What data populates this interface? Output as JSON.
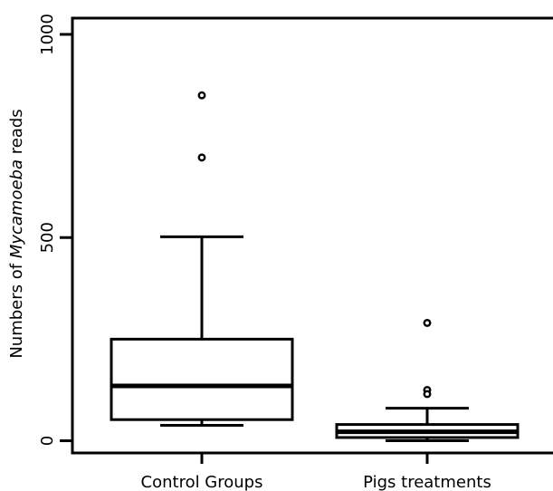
{
  "chart_data": {
    "type": "boxplot",
    "title": "",
    "xlabel": "",
    "ylabel": {
      "prefix": "Numbers of ",
      "italic": "Mycamoeba",
      "suffix": " reads"
    },
    "ylim": [
      -30,
      1040
    ],
    "yticks": [
      0,
      500,
      1000
    ],
    "ytick_labels": [
      "0",
      "500",
      "1000"
    ],
    "grid": false,
    "categories": [
      "Control Groups",
      "Pigs treatments"
    ],
    "boxes": [
      {
        "category": "Control Groups",
        "whisker_low": 38,
        "q1": 52,
        "median": 135,
        "q3": 250,
        "whisker_high": 502,
        "outliers": [
          850,
          697
        ]
      },
      {
        "category": "Pigs treatments",
        "whisker_low": 0,
        "q1": 8,
        "median": 22,
        "q3": 40,
        "whisker_high": 80,
        "outliers": [
          290,
          125,
          115
        ]
      }
    ]
  }
}
